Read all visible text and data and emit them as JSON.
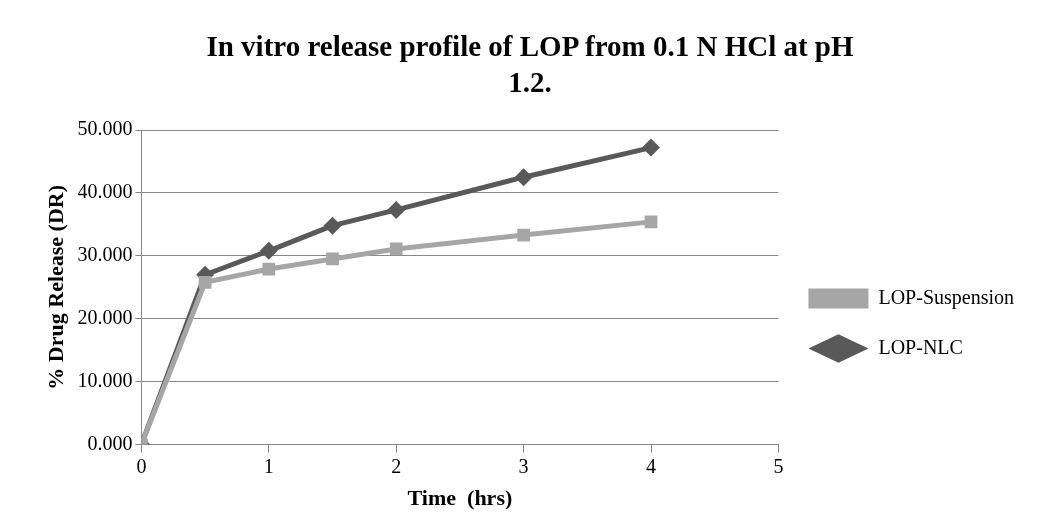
{
  "chart_data": {
    "type": "line",
    "title": "In vitro release profile of LOP from 0.1 N HCl at pH 1.2.",
    "xlabel": "Time  (hrs)",
    "ylabel": "% Drug Release (DR)",
    "x": [
      0,
      0.5,
      1,
      1.5,
      2,
      3,
      4
    ],
    "series": [
      {
        "name": "LOP-NLC",
        "color": "#595959",
        "marker": "diamond",
        "values": [
          0,
          27,
          30.8,
          34.8,
          37.3,
          42.5,
          47.2
        ]
      },
      {
        "name": "LOP-Suspension",
        "color": "#a6a6a6",
        "marker": "square",
        "values": [
          0,
          25.8,
          27.9,
          29.5,
          31.1,
          33.3,
          35.4
        ]
      }
    ],
    "xlim": [
      0,
      5
    ],
    "xticks": [
      0,
      1,
      2,
      3,
      4,
      5
    ],
    "ylim": [
      0,
      50
    ],
    "yticks": [
      {
        "value": 0,
        "label": "0.000"
      },
      {
        "value": 10,
        "label": "10.000"
      },
      {
        "value": 20,
        "label": "20.000"
      },
      {
        "value": 30,
        "label": "30.000"
      },
      {
        "value": 40,
        "label": "40.000"
      },
      {
        "value": 50,
        "label": "50.000"
      }
    ],
    "grid": "y",
    "legend": "right",
    "line_style": "solid"
  }
}
